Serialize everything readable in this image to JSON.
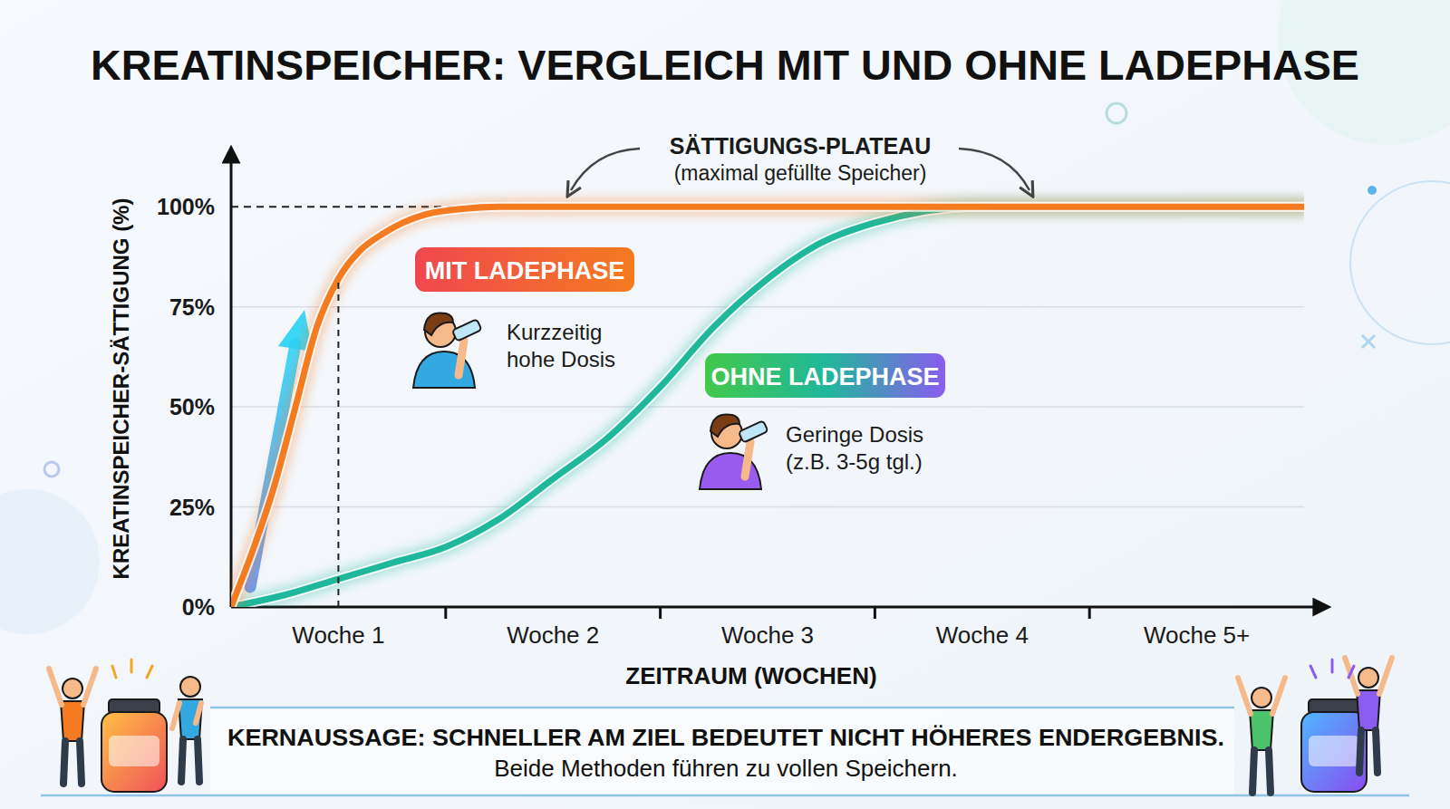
{
  "chart_data": {
    "type": "line",
    "title": "KREATINSPEICHER: VERGLEICH MIT UND OHNE LADEPHASE",
    "x_label": "ZEITRAUM (WOCHEN)",
    "y_label": "KREATINSPEICHER-SÄTTIGUNG (%)",
    "xlim": [
      0,
      5
    ],
    "xticks": [
      {
        "value": 0.5,
        "label": "Woche 1"
      },
      {
        "value": 1.5,
        "label": "Woche 2"
      },
      {
        "value": 2.5,
        "label": "Woche 3"
      },
      {
        "value": 3.5,
        "label": "Woche 4"
      },
      {
        "value": 4.5,
        "label": "Woche 5+"
      }
    ],
    "ylim": [
      0,
      110
    ],
    "yticks": [
      {
        "value": 0,
        "label": "0%"
      },
      {
        "value": 25,
        "label": "25%"
      },
      {
        "value": 50,
        "label": "50%"
      },
      {
        "value": 75,
        "label": "75%"
      },
      {
        "value": 100,
        "label": "100%"
      }
    ],
    "grid": true,
    "series": [
      {
        "name": "MIT LADEPHASE",
        "color": "#f47b20",
        "x": [
          0,
          0.1,
          0.2,
          0.3,
          0.4,
          0.5,
          0.6,
          0.7,
          0.8,
          0.9,
          1,
          1.25,
          1.5,
          2,
          3,
          4,
          5
        ],
        "values": [
          0,
          14,
          30,
          50,
          70,
          82,
          89,
          93,
          96,
          98,
          99,
          100,
          100,
          100,
          100,
          100,
          100
        ],
        "notes": [
          "Kurzzeitig",
          "hohe Dosis"
        ]
      },
      {
        "name": "OHNE LADEPHASE",
        "color": "#1fb89a",
        "x": [
          0,
          0.25,
          0.5,
          0.75,
          1,
          1.25,
          1.5,
          1.75,
          2,
          2.25,
          2.5,
          2.75,
          3,
          3.25,
          3.5,
          4,
          5
        ],
        "values": [
          0,
          3,
          7,
          11,
          15,
          22,
          32,
          42,
          55,
          70,
          82,
          91,
          96,
          99,
          100,
          100,
          100
        ],
        "notes": [
          "Geringe Dosis",
          "(z.B. 3-5g tgl.)"
        ]
      }
    ],
    "annotations": [
      {
        "title": "SÄTTIGUNGS-PLATEAU",
        "text": "(maximal gefüllte Speicher)"
      }
    ],
    "footer": {
      "title": "KERNAUSSAGE: SCHNELLER AM ZIEL BEDEUTET NICHT HÖHERES ENDERGEBNIS.",
      "text": "Beide Methoden führen zu vollen Speichern."
    }
  }
}
